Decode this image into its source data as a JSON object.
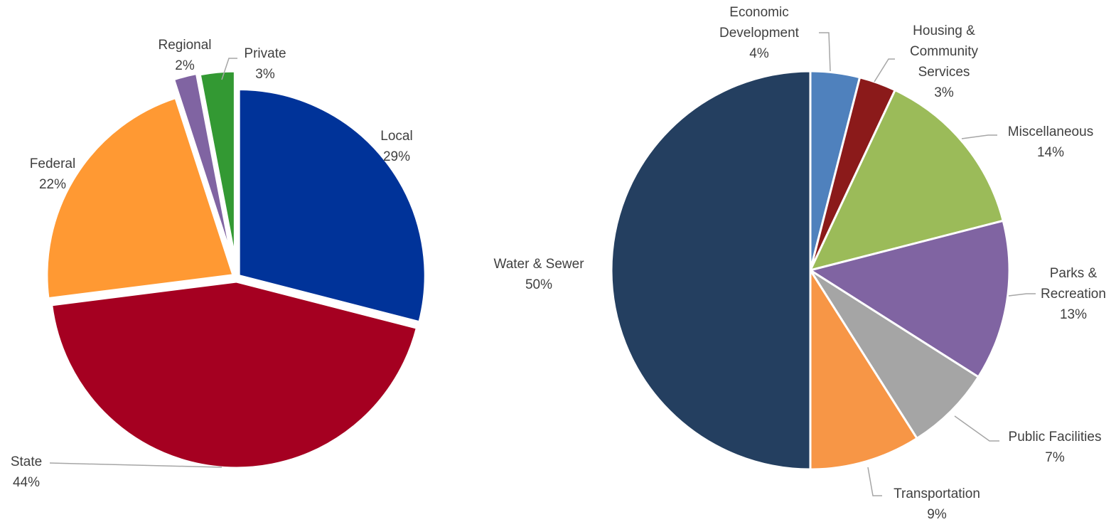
{
  "chart_data": [
    {
      "type": "pie",
      "title": "",
      "slices": [
        {
          "label": "Local",
          "value": 29,
          "display": "29%",
          "color": "#003399"
        },
        {
          "label": "State",
          "value": 44,
          "display": "44%",
          "color": "#A50021"
        },
        {
          "label": "Federal",
          "value": 22,
          "display": "22%",
          "color": "#FF9933"
        },
        {
          "label": "Regional",
          "value": 2,
          "display": "2%",
          "color": "#8064A2"
        },
        {
          "label": "Private",
          "value": 3,
          "display": "3%",
          "color": "#339933"
        }
      ],
      "legend": "none",
      "data_labels": "outside"
    },
    {
      "type": "pie",
      "title": "",
      "slices": [
        {
          "label": "Economic Development",
          "value": 4,
          "display": "4%",
          "color": "#4F81BD"
        },
        {
          "label": "Housing & Community Services",
          "value": 3,
          "display": "3%",
          "color": "#8B1A1A"
        },
        {
          "label": "Miscellaneous",
          "value": 14,
          "display": "14%",
          "color": "#9BBB59"
        },
        {
          "label": "Parks & Recreation",
          "value": 13,
          "display": "13%",
          "color": "#8064A2"
        },
        {
          "label": "Public Facilities",
          "value": 7,
          "display": "7%",
          "color": "#A5A5A5"
        },
        {
          "label": "Transportation",
          "value": 9,
          "display": "9%",
          "color": "#F79646"
        },
        {
          "label": "Water & Sewer",
          "value": 50,
          "display": "50%",
          "color": "#243F60"
        }
      ],
      "legend": "none",
      "data_labels": "outside"
    }
  ]
}
